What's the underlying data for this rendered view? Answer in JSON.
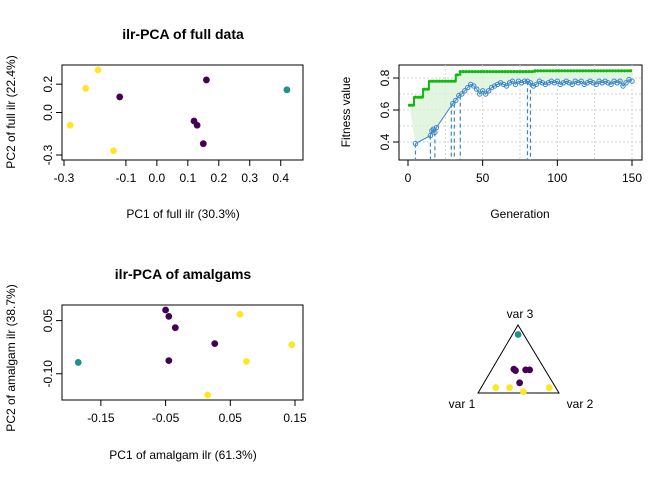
{
  "chart_data": [
    {
      "id": "p1",
      "type": "scatter",
      "title": "ilr-PCA of full data",
      "xlabel": "PC1 of full ilr (30.3%)",
      "ylabel": "PC2 of full ilr (22.4%)",
      "xlim": [
        -0.3,
        0.43
      ],
      "ylim": [
        -0.3,
        0.3
      ],
      "xticks": [
        -0.3,
        -0.1,
        0.0,
        0.1,
        0.2,
        0.3,
        0.4
      ],
      "xticklabels": [
        "-0.3",
        "-0.1",
        "0.0",
        "0.1",
        "0.2",
        "0.3",
        "0.4"
      ],
      "yticks": [
        -0.3,
        0.0,
        0.2
      ],
      "yticklabels": [
        "-0.3",
        "0.0",
        "0.2"
      ],
      "points": [
        {
          "x": -0.19,
          "y": 0.3,
          "color": "#FDE725"
        },
        {
          "x": -0.23,
          "y": 0.17,
          "color": "#FDE725"
        },
        {
          "x": -0.28,
          "y": -0.09,
          "color": "#FDE725"
        },
        {
          "x": -0.14,
          "y": -0.27,
          "color": "#FDE725"
        },
        {
          "x": -0.12,
          "y": 0.11,
          "color": "#440154"
        },
        {
          "x": 0.16,
          "y": 0.23,
          "color": "#440154"
        },
        {
          "x": 0.12,
          "y": -0.06,
          "color": "#440154"
        },
        {
          "x": 0.13,
          "y": -0.09,
          "color": "#440154"
        },
        {
          "x": 0.15,
          "y": -0.22,
          "color": "#440154"
        },
        {
          "x": 0.42,
          "y": 0.16,
          "color": "#21908C"
        }
      ]
    },
    {
      "id": "p2",
      "type": "line",
      "xlabel": "Generation",
      "ylabel": "Fitness value",
      "xlim": [
        0,
        150
      ],
      "ylim": [
        0.3,
        0.85
      ],
      "xticks": [
        0,
        50,
        100,
        150
      ],
      "xticklabels": [
        "0",
        "50",
        "100",
        "150"
      ],
      "yticks": [
        0.4,
        0.6,
        0.8
      ],
      "yticklabels": [
        "0.4",
        "0.6",
        "0.8"
      ],
      "best_steps": [
        [
          1,
          0.63
        ],
        [
          4,
          0.68
        ],
        [
          10,
          0.73
        ],
        [
          14,
          0.78
        ],
        [
          29,
          0.78
        ],
        [
          32,
          0.82
        ],
        [
          35,
          0.84
        ],
        [
          85,
          0.845
        ],
        [
          150,
          0.845
        ]
      ],
      "mean_points": [
        [
          5,
          0.39
        ],
        [
          15,
          0.44
        ],
        [
          16,
          0.47
        ],
        [
          17,
          0.48
        ],
        [
          18,
          0.46
        ],
        [
          19,
          0.49
        ],
        [
          30,
          0.64
        ],
        [
          32,
          0.66
        ],
        [
          34,
          0.69
        ],
        [
          36,
          0.7
        ],
        [
          38,
          0.72
        ],
        [
          40,
          0.74
        ],
        [
          42,
          0.76
        ],
        [
          44,
          0.75
        ],
        [
          46,
          0.73
        ],
        [
          48,
          0.7
        ],
        [
          50,
          0.72
        ],
        [
          52,
          0.7
        ],
        [
          54,
          0.72
        ],
        [
          56,
          0.74
        ],
        [
          58,
          0.75
        ],
        [
          60,
          0.76
        ],
        [
          62,
          0.77
        ],
        [
          64,
          0.76
        ],
        [
          66,
          0.75
        ],
        [
          68,
          0.77
        ],
        [
          70,
          0.78
        ],
        [
          72,
          0.76
        ],
        [
          74,
          0.78
        ],
        [
          76,
          0.77
        ],
        [
          78,
          0.78
        ],
        [
          80,
          0.78
        ],
        [
          82,
          0.77
        ],
        [
          84,
          0.75
        ],
        [
          86,
          0.76
        ],
        [
          88,
          0.78
        ],
        [
          90,
          0.77
        ],
        [
          92,
          0.76
        ],
        [
          94,
          0.77
        ],
        [
          96,
          0.78
        ],
        [
          98,
          0.77
        ],
        [
          100,
          0.78
        ],
        [
          102,
          0.76
        ],
        [
          104,
          0.77
        ],
        [
          106,
          0.78
        ],
        [
          108,
          0.77
        ],
        [
          110,
          0.76
        ],
        [
          112,
          0.78
        ],
        [
          114,
          0.77
        ],
        [
          116,
          0.78
        ],
        [
          118,
          0.76
        ],
        [
          120,
          0.77
        ],
        [
          122,
          0.78
        ],
        [
          124,
          0.77
        ],
        [
          126,
          0.76
        ],
        [
          128,
          0.78
        ],
        [
          130,
          0.77
        ],
        [
          132,
          0.78
        ],
        [
          134,
          0.77
        ],
        [
          136,
          0.76
        ],
        [
          138,
          0.78
        ],
        [
          140,
          0.77
        ],
        [
          142,
          0.78
        ],
        [
          144,
          0.75
        ],
        [
          146,
          0.77
        ],
        [
          148,
          0.79
        ],
        [
          150,
          0.78
        ]
      ],
      "drops": [
        5,
        15,
        18,
        29,
        31,
        35,
        80,
        82
      ],
      "colors": {
        "best": "#0DBA0D",
        "mean": "#3A87C8",
        "band": "#D9F2D9"
      }
    },
    {
      "id": "p3",
      "type": "scatter",
      "title": "ilr-PCA of amalgams",
      "xlabel": "PC1 of amalgam ilr (61.3%)",
      "ylabel": "PC2 of amalgam ilr (38.7%)",
      "xlim": [
        -0.19,
        0.15
      ],
      "ylim": [
        -0.16,
        0.08
      ],
      "xticks": [
        -0.15,
        -0.05,
        0.05,
        0.15
      ],
      "xticklabels": [
        "-0.15",
        "-0.05",
        "0.05",
        "0.15"
      ],
      "yticks": [
        -0.1,
        0.05
      ],
      "yticklabels": [
        "-0.10",
        "0.05"
      ],
      "points": [
        {
          "x": -0.185,
          "y": -0.068,
          "color": "#21908C"
        },
        {
          "x": -0.05,
          "y": 0.08,
          "color": "#440154"
        },
        {
          "x": -0.045,
          "y": 0.062,
          "color": "#440154"
        },
        {
          "x": -0.035,
          "y": 0.03,
          "color": "#440154"
        },
        {
          "x": -0.045,
          "y": -0.063,
          "color": "#440154"
        },
        {
          "x": 0.026,
          "y": -0.015,
          "color": "#440154"
        },
        {
          "x": 0.065,
          "y": 0.068,
          "color": "#FDE725"
        },
        {
          "x": 0.145,
          "y": -0.018,
          "color": "#FDE725"
        },
        {
          "x": 0.075,
          "y": -0.065,
          "color": "#FDE725"
        },
        {
          "x": 0.015,
          "y": -0.16,
          "color": "#FDE725"
        }
      ]
    },
    {
      "id": "p4",
      "type": "ternary",
      "vertex_labels": [
        "var 3",
        "var 1",
        "var 2"
      ],
      "points": [
        {
          "a": 0.86,
          "b": 0.07,
          "c": 0.07,
          "color": "#21908C"
        },
        {
          "a": 0.35,
          "b": 0.38,
          "c": 0.27,
          "color": "#440154"
        },
        {
          "a": 0.34,
          "b": 0.24,
          "c": 0.42,
          "color": "#440154"
        },
        {
          "a": 0.34,
          "b": 0.19,
          "c": 0.47,
          "color": "#440154"
        },
        {
          "a": 0.33,
          "b": 0.37,
          "c": 0.3,
          "color": "#440154"
        },
        {
          "a": 0.15,
          "b": 0.41,
          "c": 0.44,
          "color": "#440154"
        },
        {
          "a": 0.08,
          "b": 0.08,
          "c": 0.84,
          "color": "#FDE725"
        },
        {
          "a": 0.08,
          "b": 0.74,
          "c": 0.18,
          "color": "#FDE725"
        },
        {
          "a": 0.08,
          "b": 0.57,
          "c": 0.35,
          "color": "#FDE725"
        },
        {
          "a": 0.02,
          "b": 0.43,
          "c": 0.55,
          "color": "#FDE725"
        }
      ]
    }
  ]
}
